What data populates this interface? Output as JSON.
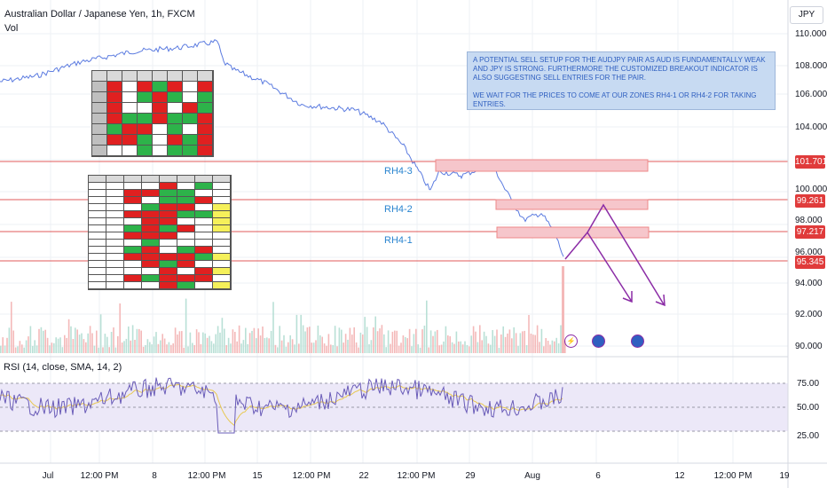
{
  "header": {
    "title": "Australian Dollar / Japanese Yen, 1h, FXCM",
    "volume_label": "Vol",
    "currency_button": "JPY"
  },
  "note": {
    "line1": "A POTENTIAL SELL SETUP FOR THE AUDJPY PAIR AS AUD IS FUNDAMENTALLY WEAK AND JPY IS STRONG. FURTHERMORE THE CUSTOMIZED BREAKOUT INDICATOR IS ALSO SUGGESTING SELL ENTRIES FOR THE PAIR.",
    "line2": "WE WAIT FOR THE PRICES TO COME AT OUR ZONES RH4-1 OR RH4-2 FOR TAKING ENTRIES."
  },
  "zones": {
    "rh43": "RH4-3",
    "rh42": "RH4-2",
    "rh41": "RH4-1"
  },
  "price_tags": {
    "t1": "101.701",
    "t2": "99.261",
    "t3": "97.217",
    "t4": "95.345"
  },
  "rsi": {
    "title": "RSI (14, close, SMA, 14, 2)",
    "ticks": [
      "75.00",
      "50.00",
      "25.00"
    ]
  },
  "price_axis": [
    "110.000",
    "108.000",
    "106.000",
    "104.000",
    "100.000",
    "98.000",
    "96.000",
    "94.000",
    "92.000",
    "90.000"
  ],
  "time_axis": [
    "Jul",
    "12:00 PM",
    "8",
    "12:00 PM",
    "15",
    "12:00 PM",
    "22",
    "12:00 PM",
    "29",
    "Aug",
    "6",
    "12",
    "12:00 PM",
    "19"
  ],
  "colors": {
    "zone_line": "#e05b5b",
    "zone_fill": "#f6c6cb",
    "arrow": "#8b2ca6",
    "price": "#5b7be0",
    "rsi": "#6a5cb8"
  }
}
